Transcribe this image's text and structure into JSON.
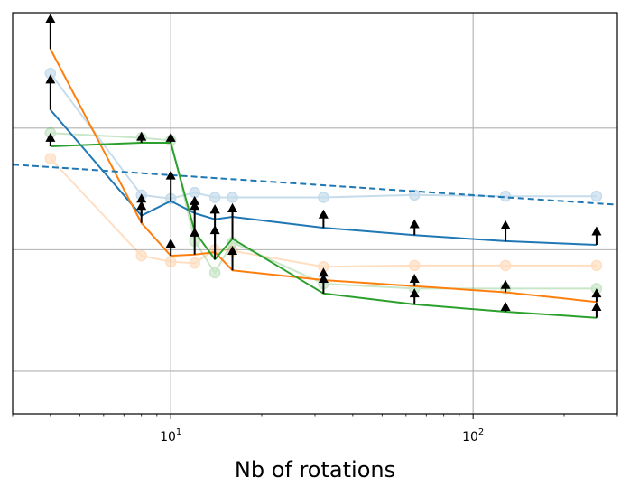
{
  "chart_data": {
    "type": "line",
    "title": "",
    "xlabel": "Nb of rotations",
    "ylabel": "",
    "xscale": "log",
    "xlim": [
      3,
      300
    ],
    "ylim": [
      -0.35,
      2.95
    ],
    "grid": true,
    "x_ticks": [
      {
        "value": 10,
        "base": "10",
        "exp": "1"
      },
      {
        "value": 100,
        "base": "10",
        "exp": "2"
      }
    ],
    "y_gridlines": [
      0,
      1,
      2
    ],
    "legend": "none",
    "colors": {
      "blue": "#1f77b4",
      "orange": "#ff7f0e",
      "green": "#2ca02c",
      "grid": "#b0b0b0",
      "arrow": "#000000"
    },
    "series": [
      {
        "name": "blue-faded",
        "color": "#1f77b4",
        "style": "faded-markers",
        "x": [
          4,
          8,
          10,
          12,
          14,
          16,
          32,
          64,
          128,
          256
        ],
        "y": [
          2.45,
          1.45,
          1.42,
          1.47,
          1.43,
          1.43,
          1.43,
          1.45,
          1.44,
          1.44
        ]
      },
      {
        "name": "orange-faded",
        "color": "#ff7f0e",
        "style": "faded-markers",
        "x": [
          4,
          8,
          10,
          12,
          14,
          16,
          32,
          64,
          128,
          256
        ],
        "y": [
          1.75,
          0.95,
          0.9,
          0.89,
          1.0,
          0.99,
          0.86,
          0.87,
          0.87,
          0.87
        ]
      },
      {
        "name": "green-faded",
        "color": "#2ca02c",
        "style": "faded-markers",
        "x": [
          4,
          8,
          10,
          12,
          14,
          16,
          32,
          64,
          128,
          256
        ],
        "y": [
          1.96,
          1.92,
          1.9,
          1.07,
          0.81,
          1.06,
          0.72,
          0.68,
          0.68,
          0.68
        ]
      },
      {
        "name": "blue",
        "color": "#1f77b4",
        "style": "solid",
        "x": [
          4,
          8,
          10,
          12,
          14,
          16,
          32,
          64,
          128,
          256
        ],
        "y": [
          2.15,
          1.28,
          1.4,
          1.3,
          1.25,
          1.27,
          1.18,
          1.12,
          1.07,
          1.04
        ]
      },
      {
        "name": "orange",
        "color": "#ff7f0e",
        "style": "solid",
        "x": [
          4,
          8,
          10,
          12,
          14,
          16,
          32,
          64,
          128,
          256
        ],
        "y": [
          2.65,
          1.22,
          0.95,
          0.96,
          0.98,
          0.83,
          0.75,
          0.7,
          0.65,
          0.57
        ]
      },
      {
        "name": "green",
        "color": "#2ca02c",
        "style": "solid",
        "x": [
          4,
          8,
          10,
          12,
          14,
          16,
          32,
          64,
          128,
          256
        ],
        "y": [
          1.85,
          1.88,
          1.88,
          1.15,
          0.92,
          1.09,
          0.64,
          0.55,
          0.49,
          0.44
        ]
      },
      {
        "name": "reference",
        "color": "#1f77b4",
        "style": "dashed",
        "x": [
          3,
          300
        ],
        "y": [
          1.7,
          1.37
        ]
      }
    ],
    "arrows": [
      {
        "x": 4,
        "y0": 2.65,
        "y1": 2.89
      },
      {
        "x": 4,
        "y0": 2.15,
        "y1": 2.39
      },
      {
        "x": 4,
        "y0": 1.85,
        "y1": 1.91
      },
      {
        "x": 8,
        "y0": 1.28,
        "y1": 1.41
      },
      {
        "x": 8,
        "y0": 1.22,
        "y1": 1.35
      },
      {
        "x": 8,
        "y0": 1.88,
        "y1": 1.92
      },
      {
        "x": 10,
        "y0": 1.4,
        "y1": 1.6
      },
      {
        "x": 10,
        "y0": 0.95,
        "y1": 1.04
      },
      {
        "x": 10,
        "y0": 1.88,
        "y1": 1.91
      },
      {
        "x": 12,
        "y0": 1.3,
        "y1": 1.39
      },
      {
        "x": 12,
        "y0": 0.96,
        "y1": 1.35
      },
      {
        "x": 12,
        "y0": 1.15,
        "y1": 1.13
      },
      {
        "x": 14,
        "y0": 1.25,
        "y1": 1.32
      },
      {
        "x": 14,
        "y0": 0.98,
        "y1": 1.32
      },
      {
        "x": 14,
        "y0": 0.92,
        "y1": 1.15
      },
      {
        "x": 16,
        "y0": 1.27,
        "y1": 1.33
      },
      {
        "x": 16,
        "y0": 0.83,
        "y1": 0.98
      },
      {
        "x": 16,
        "y0": 1.09,
        "y1": 1.33
      },
      {
        "x": 32,
        "y0": 1.18,
        "y1": 1.28
      },
      {
        "x": 32,
        "y0": 0.75,
        "y1": 0.8
      },
      {
        "x": 32,
        "y0": 0.64,
        "y1": 0.75
      },
      {
        "x": 64,
        "y0": 1.12,
        "y1": 1.2
      },
      {
        "x": 64,
        "y0": 0.7,
        "y1": 0.75
      },
      {
        "x": 64,
        "y0": 0.55,
        "y1": 0.63
      },
      {
        "x": 128,
        "y0": 1.07,
        "y1": 1.19
      },
      {
        "x": 128,
        "y0": 0.65,
        "y1": 0.7
      },
      {
        "x": 128,
        "y0": 0.49,
        "y1": 0.52
      },
      {
        "x": 256,
        "y0": 1.04,
        "y1": 1.14
      },
      {
        "x": 256,
        "y0": 0.57,
        "y1": 0.63
      },
      {
        "x": 256,
        "y0": 0.44,
        "y1": 0.52
      }
    ]
  }
}
